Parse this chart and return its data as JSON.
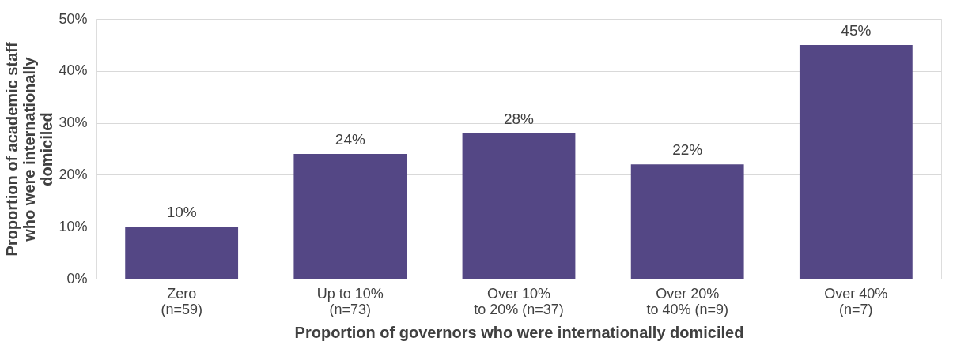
{
  "chart_data": {
    "type": "bar",
    "xlabel": "Proportion of governors who were internationally domiciled",
    "ylabel": "Proportion of academic staff\nwho were internationally\ndomiciled",
    "categories": [
      "Zero\n(n=59)",
      "Up to 10%\n(n=73)",
      "Over 10%\nto 20% (n=37)",
      "Over 20%\nto 40% (n=9)",
      "Over 40%\n(n=7)"
    ],
    "values": [
      10,
      24,
      28,
      22,
      45
    ],
    "value_labels": [
      "10%",
      "24%",
      "28%",
      "22%",
      "45%"
    ],
    "color": "#544785",
    "ylim": [
      0,
      50
    ],
    "yticks": [
      {
        "value": 0,
        "label": "0%"
      },
      {
        "value": 10,
        "label": "10%"
      },
      {
        "value": 20,
        "label": "20%"
      },
      {
        "value": 30,
        "label": "30%"
      },
      {
        "value": 40,
        "label": "40%"
      },
      {
        "value": 50,
        "label": "50%"
      }
    ],
    "grid": "y"
  }
}
